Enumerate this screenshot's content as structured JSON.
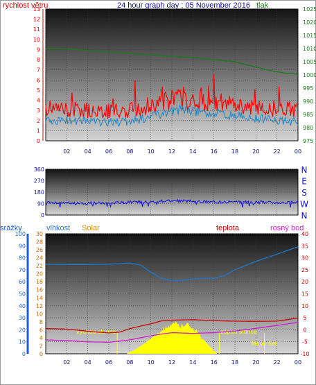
{
  "header": {
    "wind_speed_label": "rychlost větru",
    "title": "24 hour graph day : 05 November 2016",
    "pressure_label": "tlak"
  },
  "middle": {
    "compass_letters": [
      "N",
      "W",
      "S",
      "E",
      "N"
    ]
  },
  "bottom_header": {
    "rain_label": "srážky",
    "humidity_label": "vlhkost",
    "solar_label": "Solar",
    "temperature_label": "teplota",
    "dewpoint_label": "rosný bod"
  },
  "colors": {
    "wind_speed": "#ff0000",
    "wind_avg": "#1e88c8",
    "pressure": "#1a7a1a",
    "direction": "#1010e0",
    "humidity": "#1e78d0",
    "temperature": "#cc0000",
    "dewpoint": "#d020d0",
    "solar": "#ffff00",
    "rain_axis": "#1a5fd0",
    "title": "#1010a0"
  },
  "chart_data": [
    {
      "type": "line",
      "title": "24 hour graph day : 05 November 2016",
      "x_ticks": [
        "02",
        "04",
        "06",
        "08",
        "10",
        "12",
        "14",
        "16",
        "18",
        "20",
        "22",
        "00"
      ],
      "y_left_label": "rychlost větru",
      "y_left_ticks": [
        0,
        1,
        2,
        3,
        4,
        5,
        6,
        7,
        8,
        9,
        10,
        11,
        12,
        13
      ],
      "ylim_left": [
        0,
        13
      ],
      "y_right_label": "tlak",
      "y_right_ticks": [
        975,
        980,
        985,
        990,
        995,
        1000,
        1005,
        1010,
        1015,
        1020,
        1025
      ],
      "ylim_right": [
        975,
        1025
      ],
      "series": [
        {
          "axis": "left",
          "color": "#ff0000",
          "style": "gust",
          "x": [
            0,
            2,
            4,
            6,
            8,
            10,
            12,
            13,
            14,
            16,
            18,
            20,
            22,
            24
          ],
          "values": [
            3.2,
            3.1,
            3.0,
            2.9,
            3.0,
            3.6,
            4.0,
            4.2,
            4.0,
            3.8,
            3.6,
            3.2,
            3.2,
            3.0
          ]
        },
        {
          "axis": "left",
          "color": "#1e88c8",
          "style": "average",
          "x": [
            0,
            2,
            4,
            6,
            8,
            10,
            12,
            13,
            14,
            16,
            18,
            20,
            22,
            24
          ],
          "values": [
            2.0,
            2.0,
            1.9,
            1.8,
            1.9,
            2.4,
            2.9,
            3.1,
            2.9,
            2.7,
            2.5,
            2.2,
            2.0,
            1.9
          ]
        },
        {
          "axis": "right",
          "color": "#1a7a1a",
          "x": [
            0,
            1,
            3,
            5,
            8,
            10,
            12,
            14,
            16,
            18,
            19,
            20,
            21,
            22,
            23,
            24
          ],
          "values": [
            1010,
            1010,
            1009.6,
            1009,
            1008.2,
            1007.6,
            1007,
            1006.6,
            1005.8,
            1005,
            1004,
            1003,
            1002,
            1001.2,
            1000.5,
            1000.4
          ]
        }
      ]
    },
    {
      "type": "line",
      "x_ticks": [
        "02",
        "04",
        "06",
        "08",
        "10",
        "12",
        "14",
        "16",
        "18",
        "20",
        "22",
        "00"
      ],
      "y_left_ticks": [
        0,
        90,
        180,
        270,
        360
      ],
      "ylim": [
        0,
        360
      ],
      "y_right_ticks": [
        "N",
        "W",
        "S",
        "E",
        "N"
      ],
      "series": [
        {
          "color": "#1010e0",
          "x": [
            0,
            4,
            8,
            12,
            13,
            16,
            20,
            24
          ],
          "values": [
            95,
            93,
            100,
            112,
            110,
            104,
            100,
            100
          ]
        }
      ]
    },
    {
      "type": "line",
      "x_ticks": [
        "02",
        "04",
        "06",
        "08",
        "10",
        "12",
        "14",
        "16",
        "18",
        "20",
        "22",
        "00"
      ],
      "y_rain_label": "srážky",
      "y_rain_ticks": [
        0,
        10,
        20,
        30,
        40,
        50,
        60,
        70,
        80,
        90,
        100
      ],
      "ylim_rain": [
        0,
        100
      ],
      "y_humidity_label": "vlhkost",
      "y_humidity_ticks": [
        0,
        2,
        4,
        6,
        8,
        10,
        12,
        14,
        16,
        18,
        20,
        22,
        24,
        26,
        28,
        30
      ],
      "ylim_humidity": [
        0,
        30
      ],
      "y_temp_label": "teplota",
      "y_temp_ticks": [
        -10,
        -5,
        0,
        5,
        10,
        15,
        20,
        25,
        30,
        35,
        40
      ],
      "ylim_temp": [
        -10,
        40
      ],
      "series": [
        {
          "name": "vlhkost",
          "axis": "temp",
          "color": "#1e78d0",
          "x": [
            0,
            2,
            4,
            6,
            8,
            9,
            10,
            11,
            12,
            13,
            14,
            16,
            17,
            18,
            20,
            22,
            24
          ],
          "values": [
            27.3,
            27.2,
            27.2,
            27.3,
            27.8,
            27,
            24,
            21.5,
            20.5,
            20.6,
            21.2,
            21.5,
            22.5,
            25,
            28.5,
            31.5,
            34.6
          ]
        },
        {
          "name": "teplota",
          "axis": "temp",
          "color": "#cc0000",
          "x": [
            0,
            2,
            4,
            6,
            7,
            8,
            10,
            11,
            12,
            14,
            16,
            18,
            20,
            22,
            24
          ],
          "values": [
            0.5,
            0.3,
            -0.6,
            -1.3,
            -1,
            0.5,
            2.5,
            3.7,
            4,
            4.2,
            3.8,
            3.6,
            3.5,
            3.6,
            4.9
          ]
        },
        {
          "name": "rosný bod",
          "axis": "temp",
          "color": "#d020d0",
          "x": [
            0,
            2,
            4,
            6,
            8,
            10,
            11,
            12,
            14,
            16,
            18,
            20,
            22,
            24
          ],
          "values": [
            -4.2,
            -4.5,
            -5,
            -5.2,
            -4.2,
            -2.5,
            -1.8,
            -1.2,
            -1.5,
            -1.2,
            -0.5,
            0.6,
            1.8,
            3.1
          ]
        },
        {
          "name": "Solar",
          "axis": "temp",
          "type": "area",
          "color": "#ffff00",
          "x": [
            7.7,
            8.3,
            9.3,
            10.2,
            11,
            11.6,
            12,
            12.4,
            12.8,
            13.3,
            13.8,
            14.4,
            15,
            15.7,
            16.3
          ],
          "values": [
            -10,
            -8.8,
            -6,
            -3,
            0,
            1.5,
            1.8,
            2.8,
            1.2,
            2.6,
            1.5,
            -1,
            -4,
            -7.5,
            -10
          ]
        }
      ],
      "annotations": [
        {
          "text": "východ slunce",
          "x": 6.8
        },
        {
          "text": "západ slunce",
          "x": 16.5
        },
        {
          "text": "Moon Rise",
          "x": 11.2
        },
        {
          "text": "Moon Set",
          "x": 20.8
        }
      ]
    }
  ]
}
